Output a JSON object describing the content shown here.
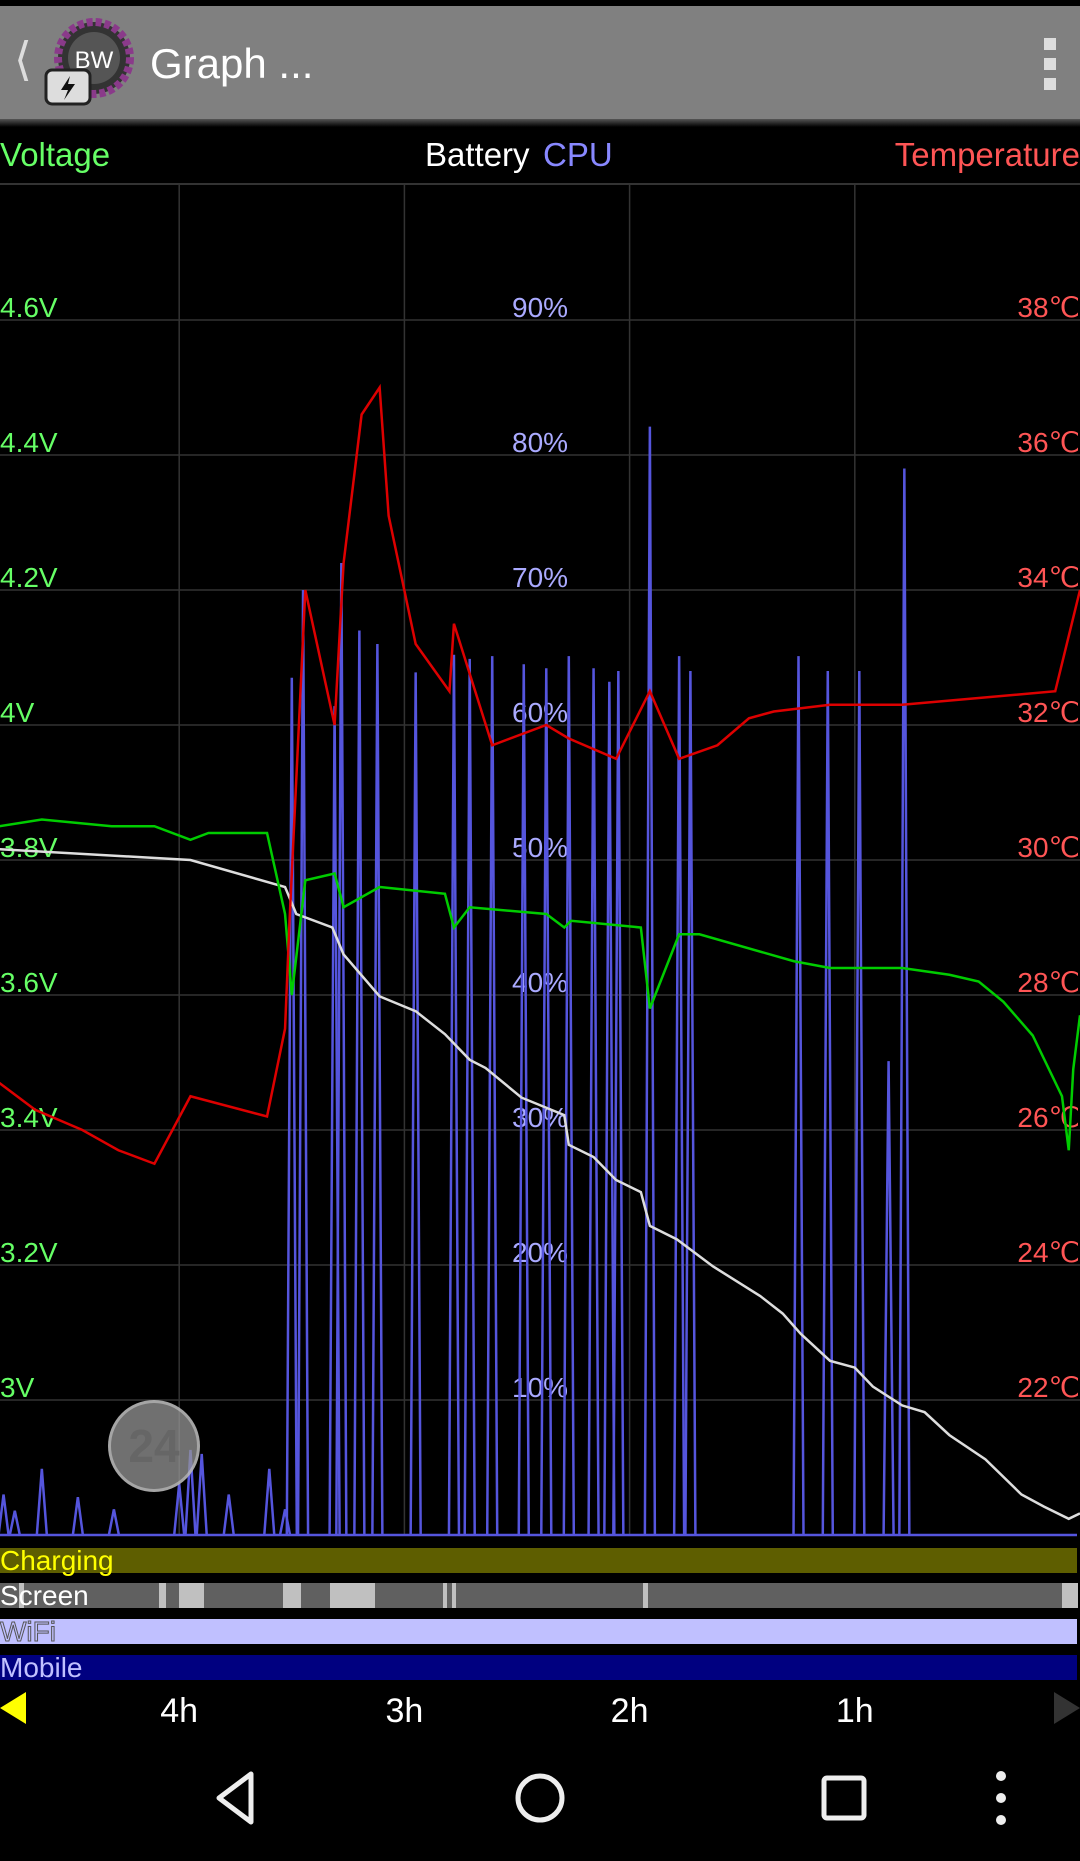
{
  "toolbar": {
    "title": "Graph ...",
    "back_icon": "chevron-left-icon",
    "logo_text": "BW",
    "menu_icon": "overflow-menu-icon"
  },
  "legend": {
    "voltage": "Voltage",
    "battery": "Battery",
    "cpu": "CPU",
    "temperature": "Temperature"
  },
  "colors": {
    "voltage": "#00cc00",
    "battery": "#dddddd",
    "cpu": "#5555dd",
    "temperature": "#dd0000",
    "voltage_label": "#66ff66",
    "cpu_label": "#aaaaff",
    "temp_label": "#ff5555",
    "charging": "#5e5e00",
    "screen_off": "#606060",
    "screen_on": "#c0c0c0",
    "wifi": "#c0c0ff",
    "mobile": "#000080"
  },
  "chart_data": {
    "type": "line",
    "x_unit": "hours ago",
    "xlim": [
      4.8,
      0
    ],
    "x_ticks": [
      {
        "h": 4,
        "label": "4h"
      },
      {
        "h": 3,
        "label": "3h"
      },
      {
        "h": 2,
        "label": "2h"
      },
      {
        "h": 1,
        "label": "1h"
      }
    ],
    "voltage_ticks": [
      "4.6V",
      "4.4V",
      "4.2V",
      "4V",
      "3.8V",
      "3.6V",
      "3.4V",
      "3.2V",
      "3V"
    ],
    "percent_ticks": [
      "90%",
      "80%",
      "70%",
      "60%",
      "50%",
      "40%",
      "30%",
      "20%",
      "10%"
    ],
    "temperature_ticks": [
      "38℃",
      "36℃",
      "34℃",
      "32℃",
      "30℃",
      "28℃",
      "26℃",
      "24℃",
      "22℃"
    ],
    "voltage_range": [
      2.8,
      4.8
    ],
    "percent_range": [
      0,
      100
    ],
    "temperature_range": [
      20,
      40
    ],
    "grid": true,
    "series": [
      {
        "name": "Voltage",
        "unit": "V",
        "points": [
          [
            4.8,
            3.85
          ],
          [
            4.61,
            3.86
          ],
          [
            4.3,
            3.85
          ],
          [
            4.11,
            3.85
          ],
          [
            3.95,
            3.83
          ],
          [
            3.87,
            3.84
          ],
          [
            3.77,
            3.84
          ],
          [
            3.61,
            3.84
          ],
          [
            3.53,
            3.72
          ],
          [
            3.5,
            3.6
          ],
          [
            3.44,
            3.77
          ],
          [
            3.31,
            3.78
          ],
          [
            3.27,
            3.73
          ],
          [
            3.11,
            3.76
          ],
          [
            2.82,
            3.75
          ],
          [
            2.78,
            3.7
          ],
          [
            2.71,
            3.73
          ],
          [
            2.37,
            3.72
          ],
          [
            2.29,
            3.7
          ],
          [
            2.26,
            3.71
          ],
          [
            1.95,
            3.7
          ],
          [
            1.91,
            3.58
          ],
          [
            1.78,
            3.69
          ],
          [
            1.69,
            3.69
          ],
          [
            1.27,
            3.65
          ],
          [
            1.11,
            3.64
          ],
          [
            0.79,
            3.64
          ],
          [
            0.58,
            3.63
          ],
          [
            0.45,
            3.62
          ],
          [
            0.34,
            3.59
          ],
          [
            0.21,
            3.54
          ],
          [
            0.08,
            3.45
          ],
          [
            0.05,
            3.37
          ],
          [
            0.03,
            3.49
          ],
          [
            0,
            3.57
          ]
        ]
      },
      {
        "name": "Battery",
        "unit": "%",
        "points": [
          [
            4.8,
            50.8
          ],
          [
            3.95,
            50.0
          ],
          [
            3.53,
            48.0
          ],
          [
            3.48,
            46.0
          ],
          [
            3.32,
            45.0
          ],
          [
            3.27,
            43.0
          ],
          [
            3.11,
            39.9
          ],
          [
            2.95,
            38.8
          ],
          [
            2.82,
            37.1
          ],
          [
            2.71,
            35.2
          ],
          [
            2.64,
            34.6
          ],
          [
            2.48,
            32.4
          ],
          [
            2.29,
            31.1
          ],
          [
            2.27,
            28.9
          ],
          [
            2.16,
            28.0
          ],
          [
            2.06,
            26.3
          ],
          [
            1.95,
            25.4
          ],
          [
            1.91,
            22.9
          ],
          [
            1.79,
            21.9
          ],
          [
            1.63,
            19.9
          ],
          [
            1.42,
            17.7
          ],
          [
            1.32,
            16.4
          ],
          [
            1.24,
            14.9
          ],
          [
            1.11,
            12.9
          ],
          [
            1.0,
            12.4
          ],
          [
            0.92,
            11.0
          ],
          [
            0.79,
            9.6
          ],
          [
            0.69,
            9.1
          ],
          [
            0.58,
            7.4
          ],
          [
            0.42,
            5.6
          ],
          [
            0.26,
            3.0
          ],
          [
            0.16,
            2.1
          ],
          [
            0.05,
            1.2
          ],
          [
            0,
            1.6
          ]
        ]
      },
      {
        "name": "Temperature",
        "unit": "℃",
        "points": [
          [
            4.8,
            26.7
          ],
          [
            4.64,
            26.3
          ],
          [
            4.43,
            26.0
          ],
          [
            4.27,
            25.7
          ],
          [
            4.11,
            25.5
          ],
          [
            3.95,
            26.5
          ],
          [
            3.61,
            26.2
          ],
          [
            3.53,
            27.5
          ],
          [
            3.51,
            29.1
          ],
          [
            3.44,
            34.0
          ],
          [
            3.31,
            32.0
          ],
          [
            3.27,
            34.4
          ],
          [
            3.19,
            36.6
          ],
          [
            3.11,
            37.0
          ],
          [
            3.07,
            35.1
          ],
          [
            2.95,
            33.2
          ],
          [
            2.8,
            32.5
          ],
          [
            2.78,
            33.5
          ],
          [
            2.61,
            31.7
          ],
          [
            2.37,
            32.0
          ],
          [
            2.27,
            31.8
          ],
          [
            2.06,
            31.5
          ],
          [
            1.91,
            32.5
          ],
          [
            1.78,
            31.5
          ],
          [
            1.61,
            31.7
          ],
          [
            1.47,
            32.1
          ],
          [
            1.36,
            32.2
          ],
          [
            1.11,
            32.3
          ],
          [
            0.79,
            32.3
          ],
          [
            0.11,
            32.5
          ],
          [
            0,
            34.0
          ]
        ]
      },
      {
        "name": "CPU",
        "unit": "%",
        "spikes": [
          [
            4.78,
            3.0
          ],
          [
            4.73,
            1.8
          ],
          [
            4.61,
            4.9
          ],
          [
            4.45,
            2.8
          ],
          [
            4.29,
            1.9
          ],
          [
            4.0,
            3.8
          ],
          [
            3.95,
            6.3
          ],
          [
            3.9,
            6.0
          ],
          [
            3.78,
            3.0
          ],
          [
            3.6,
            4.9
          ],
          [
            3.53,
            1.9
          ],
          [
            3.5,
            63.5
          ],
          [
            3.45,
            70.0
          ],
          [
            3.31,
            61.4
          ],
          [
            3.28,
            72.0
          ],
          [
            3.2,
            67.0
          ],
          [
            3.12,
            66.0
          ],
          [
            2.95,
            63.9
          ],
          [
            2.78,
            65.2
          ],
          [
            2.71,
            64.9
          ],
          [
            2.61,
            65.1
          ],
          [
            2.47,
            64.5
          ],
          [
            2.37,
            64.2
          ],
          [
            2.27,
            65.1
          ],
          [
            2.16,
            64.2
          ],
          [
            2.09,
            63.2
          ],
          [
            2.05,
            64.0
          ],
          [
            1.91,
            82.1
          ],
          [
            1.78,
            65.1
          ],
          [
            1.73,
            64.0
          ],
          [
            1.25,
            65.1
          ],
          [
            1.12,
            64.0
          ],
          [
            0.98,
            64.0
          ],
          [
            0.85,
            35.1
          ],
          [
            0.78,
            79.0
          ]
        ]
      }
    ]
  },
  "badge": {
    "text": "24"
  },
  "bars": {
    "charging": {
      "label": "Charging"
    },
    "screen": {
      "label": "Screen",
      "on_segments": [
        [
          4.71,
          4.69
        ],
        [
          4.09,
          4.06
        ],
        [
          4.0,
          3.89
        ],
        [
          3.54,
          3.46
        ],
        [
          3.33,
          3.13
        ],
        [
          2.83,
          2.81
        ],
        [
          2.79,
          2.77
        ],
        [
          1.94,
          1.92
        ],
        [
          0.08,
          0.01
        ]
      ]
    },
    "wifi": {
      "label": "WiFi"
    },
    "mobile": {
      "label": "Mobile"
    }
  },
  "nav": {
    "prev_icon": "arrow-left-icon",
    "next_icon": "arrow-right-icon"
  },
  "system_nav": {
    "back": "back-icon",
    "home": "home-icon",
    "recents": "recents-icon",
    "more": "more-icon"
  }
}
